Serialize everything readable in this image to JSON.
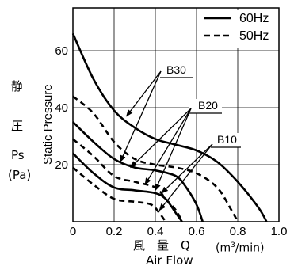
{
  "chart_data": {
    "type": "line",
    "xlabel": "Air Flow",
    "xlabel_jp": "風　量　Q",
    "x_unit": "(m³/min)",
    "ylabel": "Static Pressure",
    "ylabel_jp": [
      "静",
      "圧",
      "Ps",
      "(Pa)"
    ],
    "xlim": [
      0,
      1.0
    ],
    "ylim": [
      0,
      75
    ],
    "x_ticks": [
      "0",
      "0.2",
      "0.4",
      "0.6",
      "0.8",
      "1.0"
    ],
    "y_ticks": [
      "20",
      "40",
      "60"
    ],
    "grid": true,
    "legend_position": "top-right",
    "legend": [
      {
        "label": "60Hz",
        "style": "solid"
      },
      {
        "label": "50Hz",
        "style": "dashed"
      }
    ],
    "series": [
      {
        "name": "B30",
        "freq": "60Hz",
        "style": "solid",
        "points": [
          [
            0,
            66
          ],
          [
            0.1,
            50
          ],
          [
            0.2,
            39
          ],
          [
            0.3,
            33
          ],
          [
            0.4,
            29
          ],
          [
            0.5,
            27
          ],
          [
            0.6,
            25
          ],
          [
            0.7,
            21
          ],
          [
            0.8,
            14
          ],
          [
            0.9,
            5
          ],
          [
            0.94,
            0
          ]
        ]
      },
      {
        "name": "B30",
        "freq": "50Hz",
        "style": "dashed",
        "points": [
          [
            0,
            44
          ],
          [
            0.1,
            38
          ],
          [
            0.2,
            28
          ],
          [
            0.3,
            22
          ],
          [
            0.4,
            20
          ],
          [
            0.5,
            19
          ],
          [
            0.6,
            17
          ],
          [
            0.7,
            12
          ],
          [
            0.77,
            4
          ],
          [
            0.8,
            0
          ]
        ]
      },
      {
        "name": "B20",
        "freq": "60Hz",
        "style": "solid",
        "points": [
          [
            0,
            35
          ],
          [
            0.1,
            28
          ],
          [
            0.2,
            22
          ],
          [
            0.3,
            19
          ],
          [
            0.4,
            18
          ],
          [
            0.5,
            16
          ],
          [
            0.55,
            12
          ],
          [
            0.6,
            6
          ],
          [
            0.63,
            0
          ]
        ]
      },
      {
        "name": "B20",
        "freq": "50Hz",
        "style": "dashed",
        "points": [
          [
            0,
            29
          ],
          [
            0.1,
            23
          ],
          [
            0.2,
            16
          ],
          [
            0.3,
            14
          ],
          [
            0.4,
            12
          ],
          [
            0.45,
            8
          ],
          [
            0.5,
            4
          ],
          [
            0.53,
            0
          ]
        ]
      },
      {
        "name": "B10",
        "freq": "60Hz",
        "style": "solid",
        "points": [
          [
            0,
            24
          ],
          [
            0.1,
            17
          ],
          [
            0.2,
            12
          ],
          [
            0.3,
            11
          ],
          [
            0.4,
            10
          ],
          [
            0.45,
            8
          ],
          [
            0.5,
            3
          ],
          [
            0.53,
            0
          ]
        ]
      },
      {
        "name": "B10",
        "freq": "50Hz",
        "style": "dashed",
        "points": [
          [
            0,
            19
          ],
          [
            0.1,
            13
          ],
          [
            0.2,
            8
          ],
          [
            0.3,
            7
          ],
          [
            0.38,
            6
          ],
          [
            0.42,
            3
          ],
          [
            0.45,
            0
          ]
        ]
      }
    ],
    "annotations": [
      "B30",
      "B20",
      "B10"
    ]
  }
}
